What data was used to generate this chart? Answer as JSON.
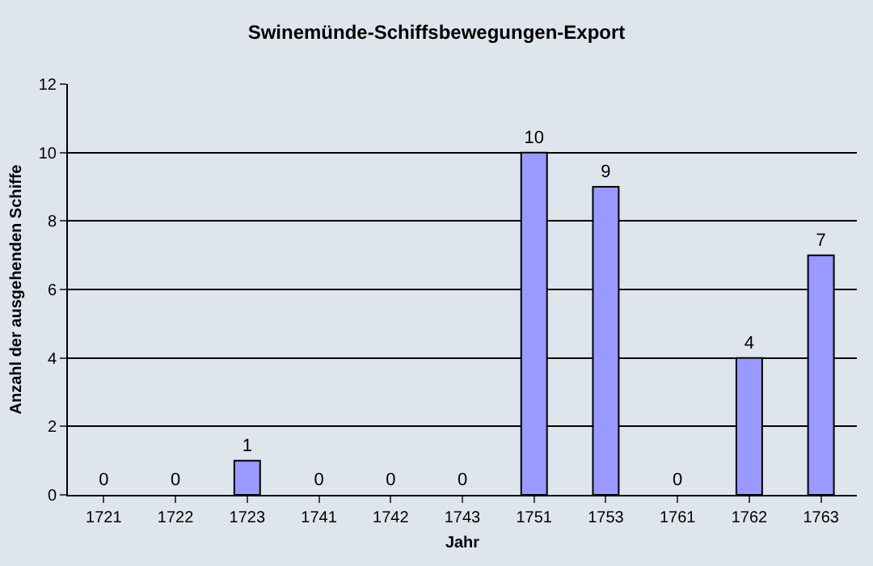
{
  "chart_data": {
    "type": "bar",
    "title": "Swinemünde-Schiffsbewegungen-Export",
    "xlabel": "Jahr",
    "ylabel": "Anzahl der ausgehenden Schiffe",
    "categories": [
      "1721",
      "1722",
      "1723",
      "1741",
      "1742",
      "1743",
      "1751",
      "1753",
      "1761",
      "1762",
      "1763"
    ],
    "values": [
      0,
      0,
      1,
      0,
      0,
      0,
      10,
      9,
      0,
      4,
      7
    ],
    "color": "#9999ff",
    "ylim": [
      0,
      12
    ],
    "yticks": [
      0,
      2,
      4,
      6,
      8,
      10,
      12
    ],
    "grid": "y",
    "data_labels": true,
    "legend": false
  }
}
